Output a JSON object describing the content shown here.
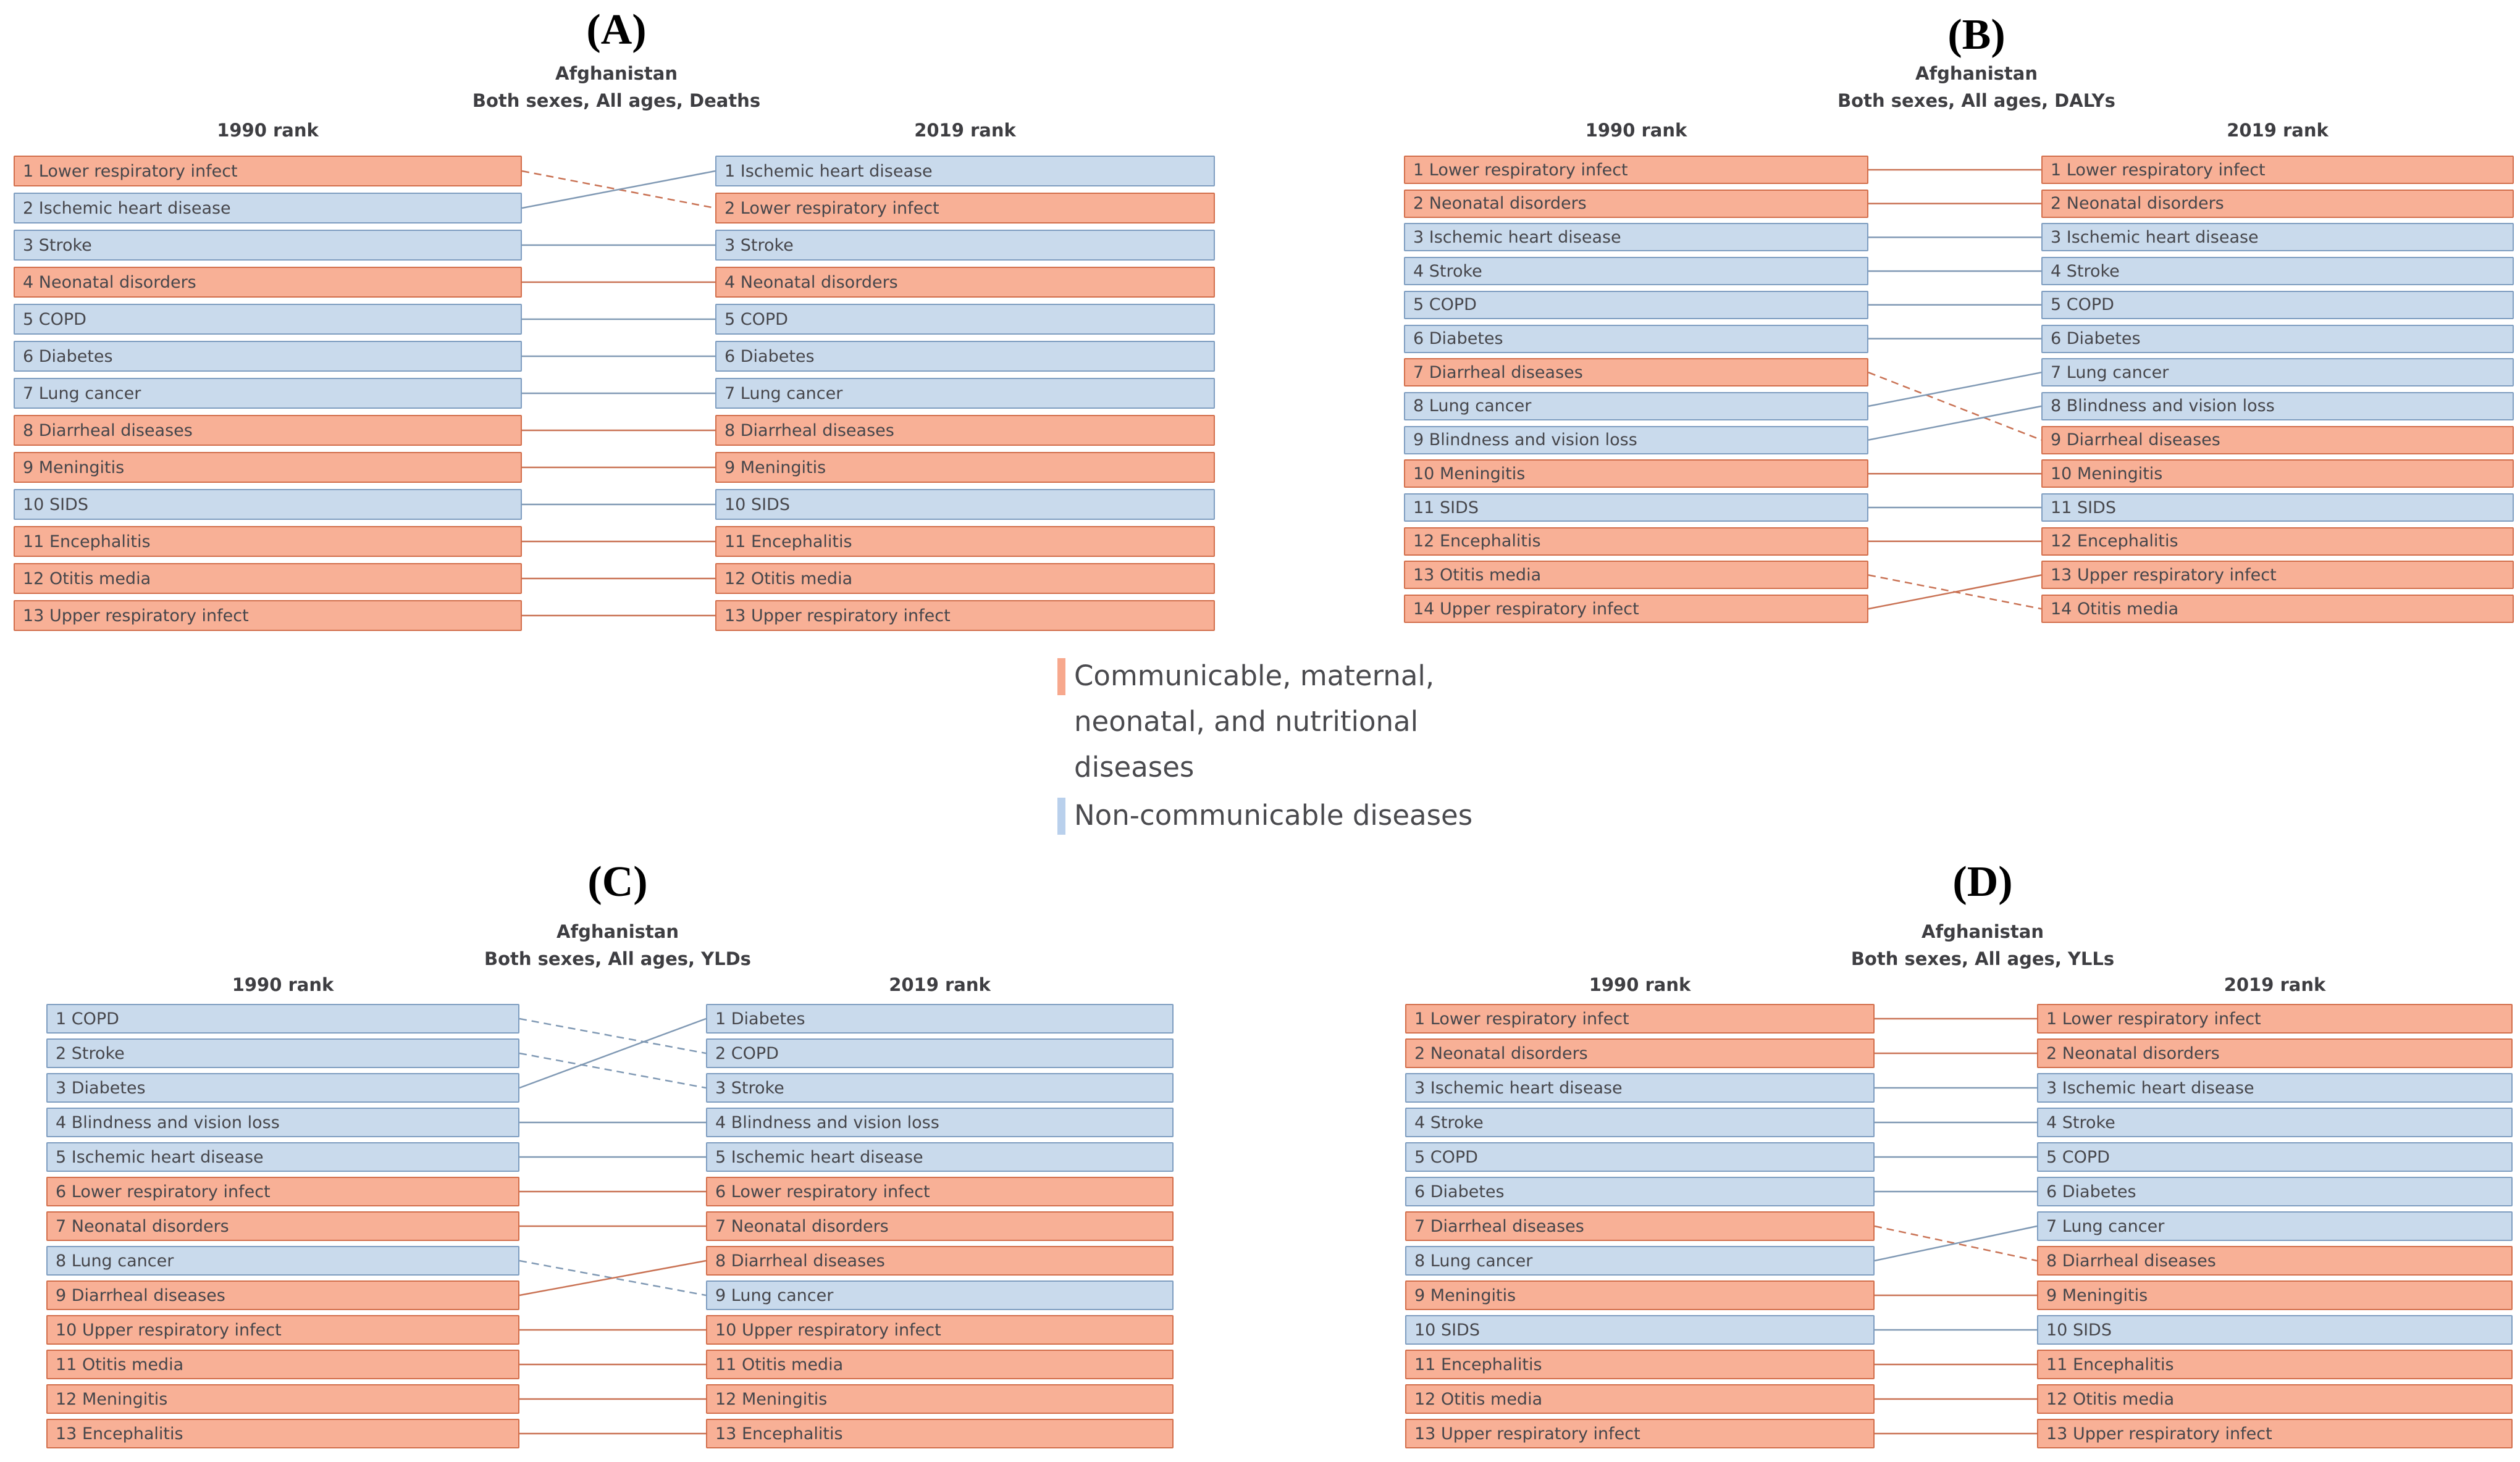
{
  "figure": {
    "background": "#FFFFFF"
  },
  "groups": {
    "cmnn": {
      "name": "Communicable, maternal, neonatal, and nutritional diseases",
      "fill": "#F8B096",
      "border": "#D26E4B",
      "line": "#C97254",
      "swatch": "#F7A88D"
    },
    "ncd": {
      "name": "Non-communicable diseases",
      "fill": "#C9DAEC",
      "border": "#7E9DC0",
      "line": "#8099B4",
      "swatch": "#B9D0EC"
    }
  },
  "legend": {
    "items": [
      {
        "group": "cmnn",
        "label": "Communicable, maternal, neonatal, and nutritional diseases"
      },
      {
        "group": "ncd",
        "label": "Non-communicable diseases"
      }
    ]
  },
  "chart_data": [
    {
      "id": "A",
      "type": "rank-change",
      "panel_label": "(A)",
      "location": "Afghanistan",
      "subtitle": "Both sexes, All ages, Deaths",
      "col_1990": "1990 rank",
      "col_2019": "2019 rank",
      "ranks_1990": [
        {
          "rank": 1,
          "label": "Lower respiratory infect",
          "group": "cmnn"
        },
        {
          "rank": 2,
          "label": "Ischemic heart disease",
          "group": "ncd"
        },
        {
          "rank": 3,
          "label": "Stroke",
          "group": "ncd"
        },
        {
          "rank": 4,
          "label": "Neonatal disorders",
          "group": "cmnn"
        },
        {
          "rank": 5,
          "label": "COPD",
          "group": "ncd"
        },
        {
          "rank": 6,
          "label": "Diabetes",
          "group": "ncd"
        },
        {
          "rank": 7,
          "label": "Lung cancer",
          "group": "ncd"
        },
        {
          "rank": 8,
          "label": "Diarrheal diseases",
          "group": "cmnn"
        },
        {
          "rank": 9,
          "label": "Meningitis",
          "group": "cmnn"
        },
        {
          "rank": 10,
          "label": "SIDS",
          "group": "ncd"
        },
        {
          "rank": 11,
          "label": "Encephalitis",
          "group": "cmnn"
        },
        {
          "rank": 12,
          "label": "Otitis media",
          "group": "cmnn"
        },
        {
          "rank": 13,
          "label": "Upper respiratory infect",
          "group": "cmnn"
        }
      ],
      "ranks_2019": [
        {
          "rank": 1,
          "label": "Ischemic heart disease",
          "group": "ncd"
        },
        {
          "rank": 2,
          "label": "Lower respiratory infect",
          "group": "cmnn"
        },
        {
          "rank": 3,
          "label": "Stroke",
          "group": "ncd"
        },
        {
          "rank": 4,
          "label": "Neonatal disorders",
          "group": "cmnn"
        },
        {
          "rank": 5,
          "label": "COPD",
          "group": "ncd"
        },
        {
          "rank": 6,
          "label": "Diabetes",
          "group": "ncd"
        },
        {
          "rank": 7,
          "label": "Lung cancer",
          "group": "ncd"
        },
        {
          "rank": 8,
          "label": "Diarrheal diseases",
          "group": "cmnn"
        },
        {
          "rank": 9,
          "label": "Meningitis",
          "group": "cmnn"
        },
        {
          "rank": 10,
          "label": "SIDS",
          "group": "ncd"
        },
        {
          "rank": 11,
          "label": "Encephalitis",
          "group": "cmnn"
        },
        {
          "rank": 12,
          "label": "Otitis media",
          "group": "cmnn"
        },
        {
          "rank": 13,
          "label": "Upper respiratory infect",
          "group": "cmnn"
        }
      ],
      "links": [
        {
          "from": 1,
          "to": 2,
          "group": "cmnn",
          "style": "dashed"
        },
        {
          "from": 2,
          "to": 1,
          "group": "ncd",
          "style": "solid"
        },
        {
          "from": 3,
          "to": 3,
          "group": "ncd",
          "style": "solid"
        },
        {
          "from": 4,
          "to": 4,
          "group": "cmnn",
          "style": "solid"
        },
        {
          "from": 5,
          "to": 5,
          "group": "ncd",
          "style": "solid"
        },
        {
          "from": 6,
          "to": 6,
          "group": "ncd",
          "style": "solid"
        },
        {
          "from": 7,
          "to": 7,
          "group": "ncd",
          "style": "solid"
        },
        {
          "from": 8,
          "to": 8,
          "group": "cmnn",
          "style": "solid"
        },
        {
          "from": 9,
          "to": 9,
          "group": "cmnn",
          "style": "solid"
        },
        {
          "from": 10,
          "to": 10,
          "group": "ncd",
          "style": "solid"
        },
        {
          "from": 11,
          "to": 11,
          "group": "cmnn",
          "style": "solid"
        },
        {
          "from": 12,
          "to": 12,
          "group": "cmnn",
          "style": "solid"
        },
        {
          "from": 13,
          "to": 13,
          "group": "cmnn",
          "style": "solid"
        }
      ]
    },
    {
      "id": "B",
      "type": "rank-change",
      "panel_label": "(B)",
      "location": "Afghanistan",
      "subtitle": "Both sexes, All ages, DALYs",
      "col_1990": "1990 rank",
      "col_2019": "2019 rank",
      "ranks_1990": [
        {
          "rank": 1,
          "label": "Lower respiratory infect",
          "group": "cmnn"
        },
        {
          "rank": 2,
          "label": "Neonatal disorders",
          "group": "cmnn"
        },
        {
          "rank": 3,
          "label": "Ischemic heart disease",
          "group": "ncd"
        },
        {
          "rank": 4,
          "label": "Stroke",
          "group": "ncd"
        },
        {
          "rank": 5,
          "label": "COPD",
          "group": "ncd"
        },
        {
          "rank": 6,
          "label": "Diabetes",
          "group": "ncd"
        },
        {
          "rank": 7,
          "label": "Diarrheal diseases",
          "group": "cmnn"
        },
        {
          "rank": 8,
          "label": "Lung cancer",
          "group": "ncd"
        },
        {
          "rank": 9,
          "label": "Blindness and vision loss",
          "group": "ncd"
        },
        {
          "rank": 10,
          "label": "Meningitis",
          "group": "cmnn"
        },
        {
          "rank": 11,
          "label": "SIDS",
          "group": "ncd"
        },
        {
          "rank": 12,
          "label": "Encephalitis",
          "group": "cmnn"
        },
        {
          "rank": 13,
          "label": "Otitis media",
          "group": "cmnn"
        },
        {
          "rank": 14,
          "label": "Upper respiratory infect",
          "group": "cmnn"
        }
      ],
      "ranks_2019": [
        {
          "rank": 1,
          "label": "Lower respiratory infect",
          "group": "cmnn"
        },
        {
          "rank": 2,
          "label": "Neonatal disorders",
          "group": "cmnn"
        },
        {
          "rank": 3,
          "label": "Ischemic heart disease",
          "group": "ncd"
        },
        {
          "rank": 4,
          "label": "Stroke",
          "group": "ncd"
        },
        {
          "rank": 5,
          "label": "COPD",
          "group": "ncd"
        },
        {
          "rank": 6,
          "label": "Diabetes",
          "group": "ncd"
        },
        {
          "rank": 7,
          "label": "Lung cancer",
          "group": "ncd"
        },
        {
          "rank": 8,
          "label": "Blindness and vision loss",
          "group": "ncd"
        },
        {
          "rank": 9,
          "label": "Diarrheal diseases",
          "group": "cmnn"
        },
        {
          "rank": 10,
          "label": "Meningitis",
          "group": "cmnn"
        },
        {
          "rank": 11,
          "label": "SIDS",
          "group": "ncd"
        },
        {
          "rank": 12,
          "label": "Encephalitis",
          "group": "cmnn"
        },
        {
          "rank": 13,
          "label": "Upper respiratory infect",
          "group": "cmnn"
        },
        {
          "rank": 14,
          "label": "Otitis media",
          "group": "cmnn"
        }
      ],
      "links": [
        {
          "from": 1,
          "to": 1,
          "group": "cmnn",
          "style": "solid"
        },
        {
          "from": 2,
          "to": 2,
          "group": "cmnn",
          "style": "solid"
        },
        {
          "from": 3,
          "to": 3,
          "group": "ncd",
          "style": "solid"
        },
        {
          "from": 4,
          "to": 4,
          "group": "ncd",
          "style": "solid"
        },
        {
          "from": 5,
          "to": 5,
          "group": "ncd",
          "style": "solid"
        },
        {
          "from": 6,
          "to": 6,
          "group": "ncd",
          "style": "solid"
        },
        {
          "from": 7,
          "to": 9,
          "group": "cmnn",
          "style": "dashed"
        },
        {
          "from": 8,
          "to": 7,
          "group": "ncd",
          "style": "solid"
        },
        {
          "from": 9,
          "to": 8,
          "group": "ncd",
          "style": "solid"
        },
        {
          "from": 10,
          "to": 10,
          "group": "cmnn",
          "style": "solid"
        },
        {
          "from": 11,
          "to": 11,
          "group": "ncd",
          "style": "solid"
        },
        {
          "from": 12,
          "to": 12,
          "group": "cmnn",
          "style": "solid"
        },
        {
          "from": 13,
          "to": 14,
          "group": "cmnn",
          "style": "dashed"
        },
        {
          "from": 14,
          "to": 13,
          "group": "cmnn",
          "style": "solid"
        }
      ]
    },
    {
      "id": "C",
      "type": "rank-change",
      "panel_label": "(C)",
      "location": "Afghanistan",
      "subtitle": "Both sexes, All ages, YLDs",
      "col_1990": "1990 rank",
      "col_2019": "2019 rank",
      "ranks_1990": [
        {
          "rank": 1,
          "label": "COPD",
          "group": "ncd"
        },
        {
          "rank": 2,
          "label": "Stroke",
          "group": "ncd"
        },
        {
          "rank": 3,
          "label": "Diabetes",
          "group": "ncd"
        },
        {
          "rank": 4,
          "label": "Blindness and vision loss",
          "group": "ncd"
        },
        {
          "rank": 5,
          "label": "Ischemic heart disease",
          "group": "ncd"
        },
        {
          "rank": 6,
          "label": "Lower respiratory infect",
          "group": "cmnn"
        },
        {
          "rank": 7,
          "label": "Neonatal disorders",
          "group": "cmnn"
        },
        {
          "rank": 8,
          "label": "Lung cancer",
          "group": "ncd"
        },
        {
          "rank": 9,
          "label": "Diarrheal diseases",
          "group": "cmnn"
        },
        {
          "rank": 10,
          "label": "Upper respiratory infect",
          "group": "cmnn"
        },
        {
          "rank": 11,
          "label": "Otitis media",
          "group": "cmnn"
        },
        {
          "rank": 12,
          "label": "Meningitis",
          "group": "cmnn"
        },
        {
          "rank": 13,
          "label": "Encephalitis",
          "group": "cmnn"
        }
      ],
      "ranks_2019": [
        {
          "rank": 1,
          "label": "Diabetes",
          "group": "ncd"
        },
        {
          "rank": 2,
          "label": "COPD",
          "group": "ncd"
        },
        {
          "rank": 3,
          "label": "Stroke",
          "group": "ncd"
        },
        {
          "rank": 4,
          "label": "Blindness and vision loss",
          "group": "ncd"
        },
        {
          "rank": 5,
          "label": "Ischemic heart disease",
          "group": "ncd"
        },
        {
          "rank": 6,
          "label": "Lower respiratory infect",
          "group": "cmnn"
        },
        {
          "rank": 7,
          "label": "Neonatal disorders",
          "group": "cmnn"
        },
        {
          "rank": 8,
          "label": "Diarrheal diseases",
          "group": "cmnn"
        },
        {
          "rank": 9,
          "label": "Lung cancer",
          "group": "ncd"
        },
        {
          "rank": 10,
          "label": "Upper respiratory infect",
          "group": "cmnn"
        },
        {
          "rank": 11,
          "label": "Otitis media",
          "group": "cmnn"
        },
        {
          "rank": 12,
          "label": "Meningitis",
          "group": "cmnn"
        },
        {
          "rank": 13,
          "label": "Encephalitis",
          "group": "cmnn"
        }
      ],
      "links": [
        {
          "from": 1,
          "to": 2,
          "group": "ncd",
          "style": "dashed"
        },
        {
          "from": 2,
          "to": 3,
          "group": "ncd",
          "style": "dashed"
        },
        {
          "from": 3,
          "to": 1,
          "group": "ncd",
          "style": "solid"
        },
        {
          "from": 4,
          "to": 4,
          "group": "ncd",
          "style": "solid"
        },
        {
          "from": 5,
          "to": 5,
          "group": "ncd",
          "style": "solid"
        },
        {
          "from": 6,
          "to": 6,
          "group": "cmnn",
          "style": "solid"
        },
        {
          "from": 7,
          "to": 7,
          "group": "cmnn",
          "style": "solid"
        },
        {
          "from": 8,
          "to": 9,
          "group": "ncd",
          "style": "dashed"
        },
        {
          "from": 9,
          "to": 8,
          "group": "cmnn",
          "style": "solid"
        },
        {
          "from": 10,
          "to": 10,
          "group": "cmnn",
          "style": "solid"
        },
        {
          "from": 11,
          "to": 11,
          "group": "cmnn",
          "style": "solid"
        },
        {
          "from": 12,
          "to": 12,
          "group": "cmnn",
          "style": "solid"
        },
        {
          "from": 13,
          "to": 13,
          "group": "cmnn",
          "style": "solid"
        }
      ]
    },
    {
      "id": "D",
      "type": "rank-change",
      "panel_label": "(D)",
      "location": "Afghanistan",
      "subtitle": "Both sexes, All ages, YLLs",
      "col_1990": "1990 rank",
      "col_2019": "2019 rank",
      "ranks_1990": [
        {
          "rank": 1,
          "label": "Lower respiratory infect",
          "group": "cmnn"
        },
        {
          "rank": 2,
          "label": "Neonatal disorders",
          "group": "cmnn"
        },
        {
          "rank": 3,
          "label": "Ischemic heart disease",
          "group": "ncd"
        },
        {
          "rank": 4,
          "label": "Stroke",
          "group": "ncd"
        },
        {
          "rank": 5,
          "label": "COPD",
          "group": "ncd"
        },
        {
          "rank": 6,
          "label": "Diabetes",
          "group": "ncd"
        },
        {
          "rank": 7,
          "label": "Diarrheal diseases",
          "group": "cmnn"
        },
        {
          "rank": 8,
          "label": "Lung cancer",
          "group": "ncd"
        },
        {
          "rank": 9,
          "label": "Meningitis",
          "group": "cmnn"
        },
        {
          "rank": 10,
          "label": "SIDS",
          "group": "ncd"
        },
        {
          "rank": 11,
          "label": "Encephalitis",
          "group": "cmnn"
        },
        {
          "rank": 12,
          "label": "Otitis media",
          "group": "cmnn"
        },
        {
          "rank": 13,
          "label": "Upper respiratory infect",
          "group": "cmnn"
        }
      ],
      "ranks_2019": [
        {
          "rank": 1,
          "label": "Lower respiratory infect",
          "group": "cmnn"
        },
        {
          "rank": 2,
          "label": "Neonatal disorders",
          "group": "cmnn"
        },
        {
          "rank": 3,
          "label": "Ischemic heart disease",
          "group": "ncd"
        },
        {
          "rank": 4,
          "label": "Stroke",
          "group": "ncd"
        },
        {
          "rank": 5,
          "label": "COPD",
          "group": "ncd"
        },
        {
          "rank": 6,
          "label": "Diabetes",
          "group": "ncd"
        },
        {
          "rank": 7,
          "label": "Lung cancer",
          "group": "ncd"
        },
        {
          "rank": 8,
          "label": "Diarrheal diseases",
          "group": "cmnn"
        },
        {
          "rank": 9,
          "label": "Meningitis",
          "group": "cmnn"
        },
        {
          "rank": 10,
          "label": "SIDS",
          "group": "ncd"
        },
        {
          "rank": 11,
          "label": "Encephalitis",
          "group": "cmnn"
        },
        {
          "rank": 12,
          "label": "Otitis media",
          "group": "cmnn"
        },
        {
          "rank": 13,
          "label": "Upper respiratory infect",
          "group": "cmnn"
        }
      ],
      "links": [
        {
          "from": 1,
          "to": 1,
          "group": "cmnn",
          "style": "solid"
        },
        {
          "from": 2,
          "to": 2,
          "group": "cmnn",
          "style": "solid"
        },
        {
          "from": 3,
          "to": 3,
          "group": "ncd",
          "style": "solid"
        },
        {
          "from": 4,
          "to": 4,
          "group": "ncd",
          "style": "solid"
        },
        {
          "from": 5,
          "to": 5,
          "group": "ncd",
          "style": "solid"
        },
        {
          "from": 6,
          "to": 6,
          "group": "ncd",
          "style": "solid"
        },
        {
          "from": 7,
          "to": 8,
          "group": "cmnn",
          "style": "dashed"
        },
        {
          "from": 8,
          "to": 7,
          "group": "ncd",
          "style": "solid"
        },
        {
          "from": 9,
          "to": 9,
          "group": "cmnn",
          "style": "solid"
        },
        {
          "from": 10,
          "to": 10,
          "group": "ncd",
          "style": "solid"
        },
        {
          "from": 11,
          "to": 11,
          "group": "cmnn",
          "style": "solid"
        },
        {
          "from": 12,
          "to": 12,
          "group": "cmnn",
          "style": "solid"
        },
        {
          "from": 13,
          "to": 13,
          "group": "cmnn",
          "style": "solid"
        }
      ]
    }
  ]
}
